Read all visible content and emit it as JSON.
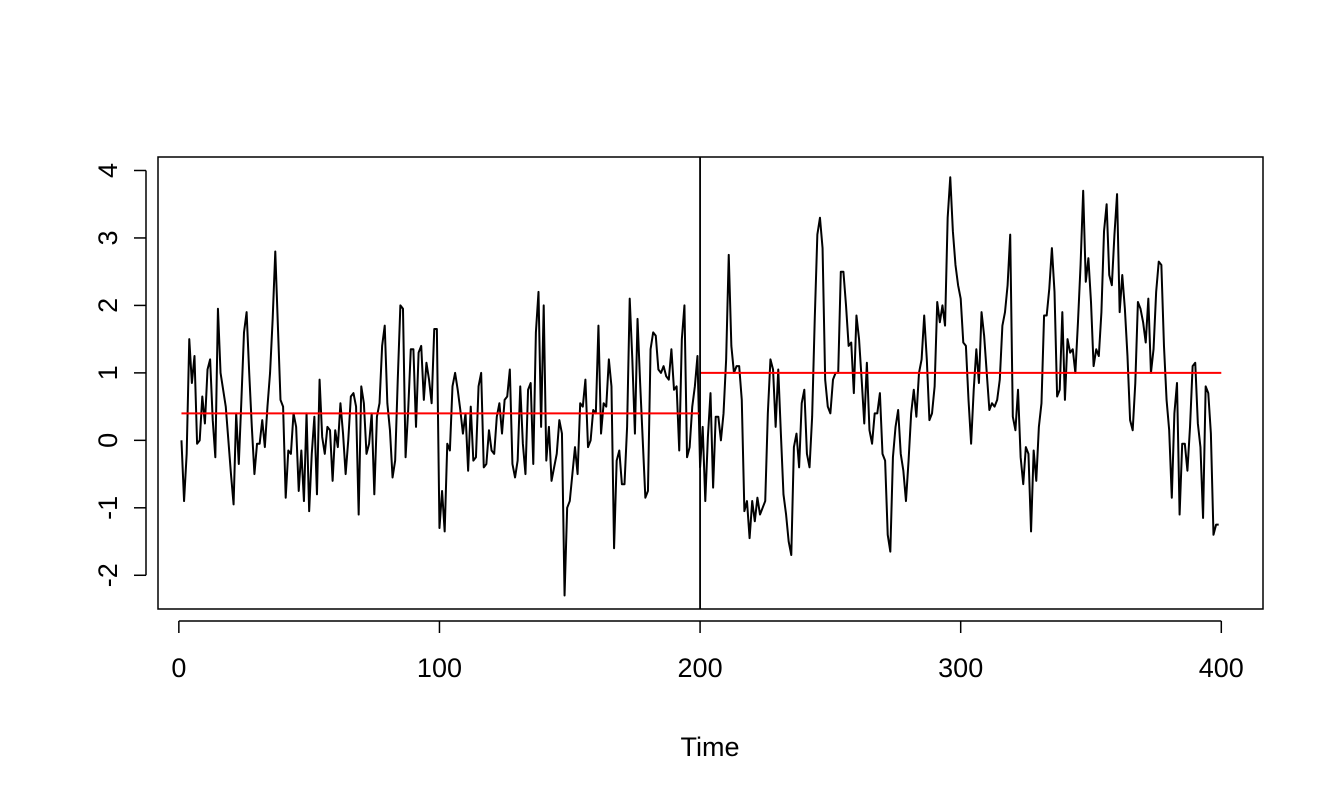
{
  "chart_data": {
    "type": "line",
    "title": "",
    "xlabel": "Time",
    "ylabel": "",
    "xlim": [
      -8,
      416
    ],
    "ylim": [
      -2.5,
      4.2
    ],
    "x_ticks": [
      0,
      100,
      200,
      300,
      400
    ],
    "y_ticks": [
      -2,
      -1,
      0,
      1,
      2,
      3,
      4
    ],
    "x_tick_labels": [
      "0",
      "100",
      "200",
      "300",
      "400"
    ],
    "y_tick_labels": [
      "-2",
      "-1",
      "0",
      "1",
      "2",
      "3",
      "4"
    ],
    "grid": false,
    "legend": "none",
    "colors": {
      "series": "#000000",
      "mean": "#ff0000",
      "changepoint": "#000000"
    },
    "changepoint": 200,
    "mean_segments": [
      {
        "x_start": 1,
        "x_end": 200,
        "y": 0.4
      },
      {
        "x_start": 200,
        "x_end": 400,
        "y": 1.0
      }
    ],
    "series": [
      {
        "x_start": 1,
        "x_step": 1,
        "values": [
          0.0,
          -0.9,
          -0.2,
          1.5,
          0.85,
          1.25,
          -0.05,
          0.0,
          0.65,
          0.25,
          1.05,
          1.2,
          0.3,
          -0.25,
          1.95,
          1.0,
          0.75,
          0.5,
          0.0,
          -0.5,
          -0.95,
          0.4,
          -0.35,
          0.6,
          1.6,
          1.9,
          1.0,
          0.2,
          -0.5,
          -0.05,
          -0.05,
          0.3,
          -0.1,
          0.5,
          1.0,
          1.8,
          2.8,
          1.7,
          0.6,
          0.5,
          -0.85,
          -0.15,
          -0.2,
          0.4,
          0.2,
          -0.75,
          -0.15,
          -0.9,
          0.4,
          -1.05,
          -0.2,
          0.35,
          -0.8,
          0.9,
          0.05,
          -0.2,
          0.2,
          0.15,
          -0.6,
          0.15,
          -0.1,
          0.55,
          0.1,
          -0.5,
          0.0,
          0.65,
          0.7,
          0.5,
          -1.1,
          0.8,
          0.55,
          -0.2,
          -0.05,
          0.4,
          -0.8,
          0.35,
          0.55,
          1.4,
          1.7,
          0.55,
          0.15,
          -0.55,
          -0.3,
          0.9,
          2.0,
          1.95,
          -0.25,
          0.45,
          1.35,
          1.35,
          0.2,
          1.3,
          1.4,
          0.6,
          1.15,
          0.9,
          0.55,
          1.65,
          1.65,
          -1.3,
          -0.75,
          -1.35,
          -0.05,
          -0.15,
          0.8,
          1.0,
          0.75,
          0.45,
          0.1,
          0.4,
          -0.45,
          0.5,
          -0.3,
          -0.25,
          0.8,
          1.0,
          -0.4,
          -0.35,
          0.15,
          -0.15,
          -0.2,
          0.35,
          0.55,
          0.1,
          0.6,
          0.65,
          1.05,
          -0.35,
          -0.55,
          -0.3,
          0.8,
          -0.05,
          -0.5,
          0.75,
          0.85,
          -0.35,
          1.6,
          2.2,
          0.2,
          2.0,
          -0.3,
          0.2,
          -0.6,
          -0.4,
          -0.2,
          0.3,
          0.1,
          -2.3,
          -1.0,
          -0.9,
          -0.5,
          -0.1,
          -0.5,
          0.55,
          0.5,
          0.9,
          -0.1,
          0.0,
          0.45,
          0.4,
          1.7,
          0.1,
          0.55,
          0.5,
          1.2,
          0.8,
          -1.6,
          -0.3,
          -0.15,
          -0.65,
          -0.65,
          0.2,
          2.1,
          1.2,
          0.1,
          1.8,
          0.85,
          0.0,
          -0.85,
          -0.75,
          1.35,
          1.6,
          1.55,
          1.05,
          1.0,
          1.1,
          0.95,
          0.9,
          1.35,
          0.75,
          0.8,
          -0.15,
          1.5,
          2.0,
          -0.25,
          -0.1,
          0.5,
          0.8,
          1.25,
          -0.4,
          0.2,
          -0.9,
          0.05,
          0.7,
          -0.7,
          0.35,
          0.35,
          0.0,
          0.4,
          1.2,
          2.75,
          1.4,
          1.0,
          1.1,
          1.1,
          0.6,
          -1.05,
          -0.9,
          -1.45,
          -0.9,
          -1.2,
          -0.85,
          -1.1,
          -1.0,
          -0.9,
          0.4,
          1.2,
          1.05,
          0.2,
          1.05,
          0.1,
          -0.8,
          -1.1,
          -1.5,
          -1.7,
          -0.1,
          0.1,
          -0.4,
          0.55,
          0.75,
          -0.2,
          -0.4,
          0.35,
          1.8,
          3.05,
          3.3,
          2.85,
          0.9,
          0.5,
          0.4,
          0.9,
          1.0,
          1.0,
          2.5,
          2.5,
          2.0,
          1.4,
          1.45,
          0.7,
          1.85,
          1.5,
          0.9,
          0.25,
          1.15,
          0.15,
          -0.05,
          0.4,
          0.4,
          0.7,
          -0.2,
          -0.3,
          -1.4,
          -1.65,
          -0.25,
          0.2,
          0.45,
          -0.2,
          -0.45,
          -0.9,
          -0.3,
          0.4,
          0.75,
          0.35,
          1.0,
          1.2,
          1.85,
          1.2,
          0.3,
          0.4,
          0.8,
          2.05,
          1.75,
          2.0,
          1.7,
          3.3,
          3.9,
          3.1,
          2.6,
          2.3,
          2.1,
          1.45,
          1.4,
          0.6,
          -0.05,
          0.75,
          1.35,
          0.85,
          1.9,
          1.55,
          1.0,
          0.45,
          0.55,
          0.5,
          0.6,
          0.9,
          1.7,
          1.9,
          2.3,
          3.05,
          0.35,
          0.15,
          0.75,
          -0.25,
          -0.65,
          -0.1,
          -0.2,
          -1.35,
          -0.15,
          -0.6,
          0.2,
          0.55,
          1.85,
          1.85,
          2.25,
          2.85,
          2.2,
          0.65,
          0.75,
          1.9,
          0.6,
          1.5,
          1.3,
          1.35,
          1.0,
          1.75,
          2.6,
          3.7,
          2.35,
          2.7,
          2.05,
          1.1,
          1.35,
          1.25,
          1.9,
          3.1,
          3.5,
          2.45,
          2.3,
          3.05,
          3.65,
          1.9,
          2.45,
          1.95,
          1.25,
          0.3,
          0.15,
          0.85,
          2.05,
          1.95,
          1.75,
          1.45,
          2.1,
          1.0,
          1.35,
          2.2,
          2.65,
          2.6,
          1.4,
          0.6,
          0.15,
          -0.85,
          0.4,
          0.85,
          -1.1,
          -0.05,
          -0.05,
          -0.45,
          0.2,
          1.1,
          1.15,
          0.25,
          -0.1,
          -1.15,
          0.8,
          0.7,
          0.1,
          -1.4,
          -1.25,
          -1.25
        ]
      }
    ]
  }
}
